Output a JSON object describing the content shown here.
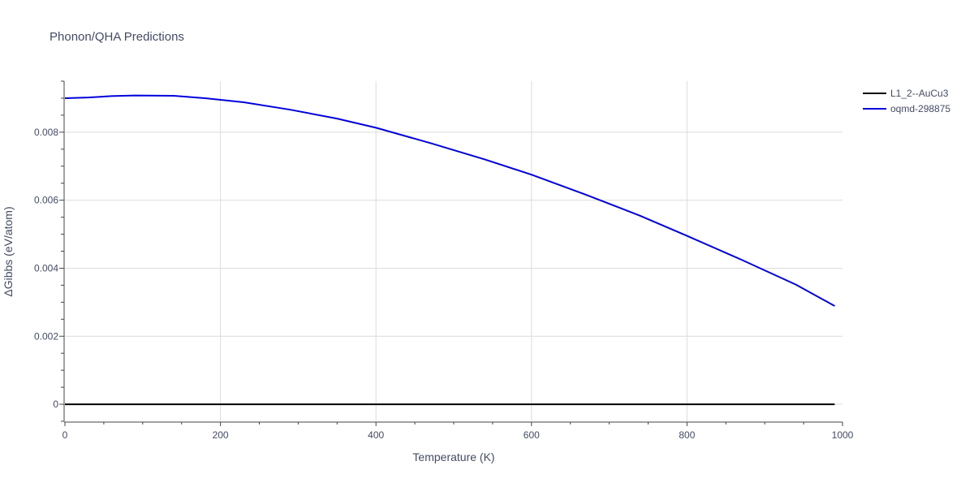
{
  "chart_data": {
    "type": "line",
    "title": "Phonon/QHA Predictions",
    "xlabel": "Temperature (K)",
    "ylabel": "ΔGibbs (eV/atom)",
    "xlim": [
      0,
      1000
    ],
    "ylim": [
      -0.0005,
      0.0095
    ],
    "xticks": [
      0,
      200,
      400,
      600,
      800,
      1000
    ],
    "xtick_labels": [
      "0",
      "200",
      "400",
      "600",
      "800",
      "1000"
    ],
    "yticks": [
      0,
      0.002,
      0.004,
      0.006,
      0.008
    ],
    "ytick_labels": [
      "0",
      "0.002",
      "0.004",
      "0.006",
      "0.008"
    ],
    "grid": true,
    "legend_position": "top-right",
    "series": [
      {
        "name": "L1_2--AuCu3",
        "color": "#000000",
        "x": [
          0,
          100,
          200,
          300,
          400,
          500,
          600,
          700,
          800,
          900,
          990
        ],
        "y": [
          0,
          0,
          0,
          0,
          0,
          0,
          0,
          0,
          0,
          0,
          0
        ]
      },
      {
        "name": "oqmd-298875",
        "color": "#0000dd",
        "x": [
          0,
          30,
          60,
          90,
          140,
          180,
          230,
          290,
          350,
          400,
          470,
          540,
          600,
          670,
          740,
          800,
          870,
          940,
          990
        ],
        "y": [
          0.009,
          0.00902,
          0.00906,
          0.00908,
          0.00907,
          0.009,
          0.00888,
          0.00866,
          0.0084,
          0.00813,
          0.00768,
          0.0072,
          0.00675,
          0.00616,
          0.00554,
          0.00495,
          0.00425,
          0.00352,
          0.00289
        ]
      }
    ]
  }
}
